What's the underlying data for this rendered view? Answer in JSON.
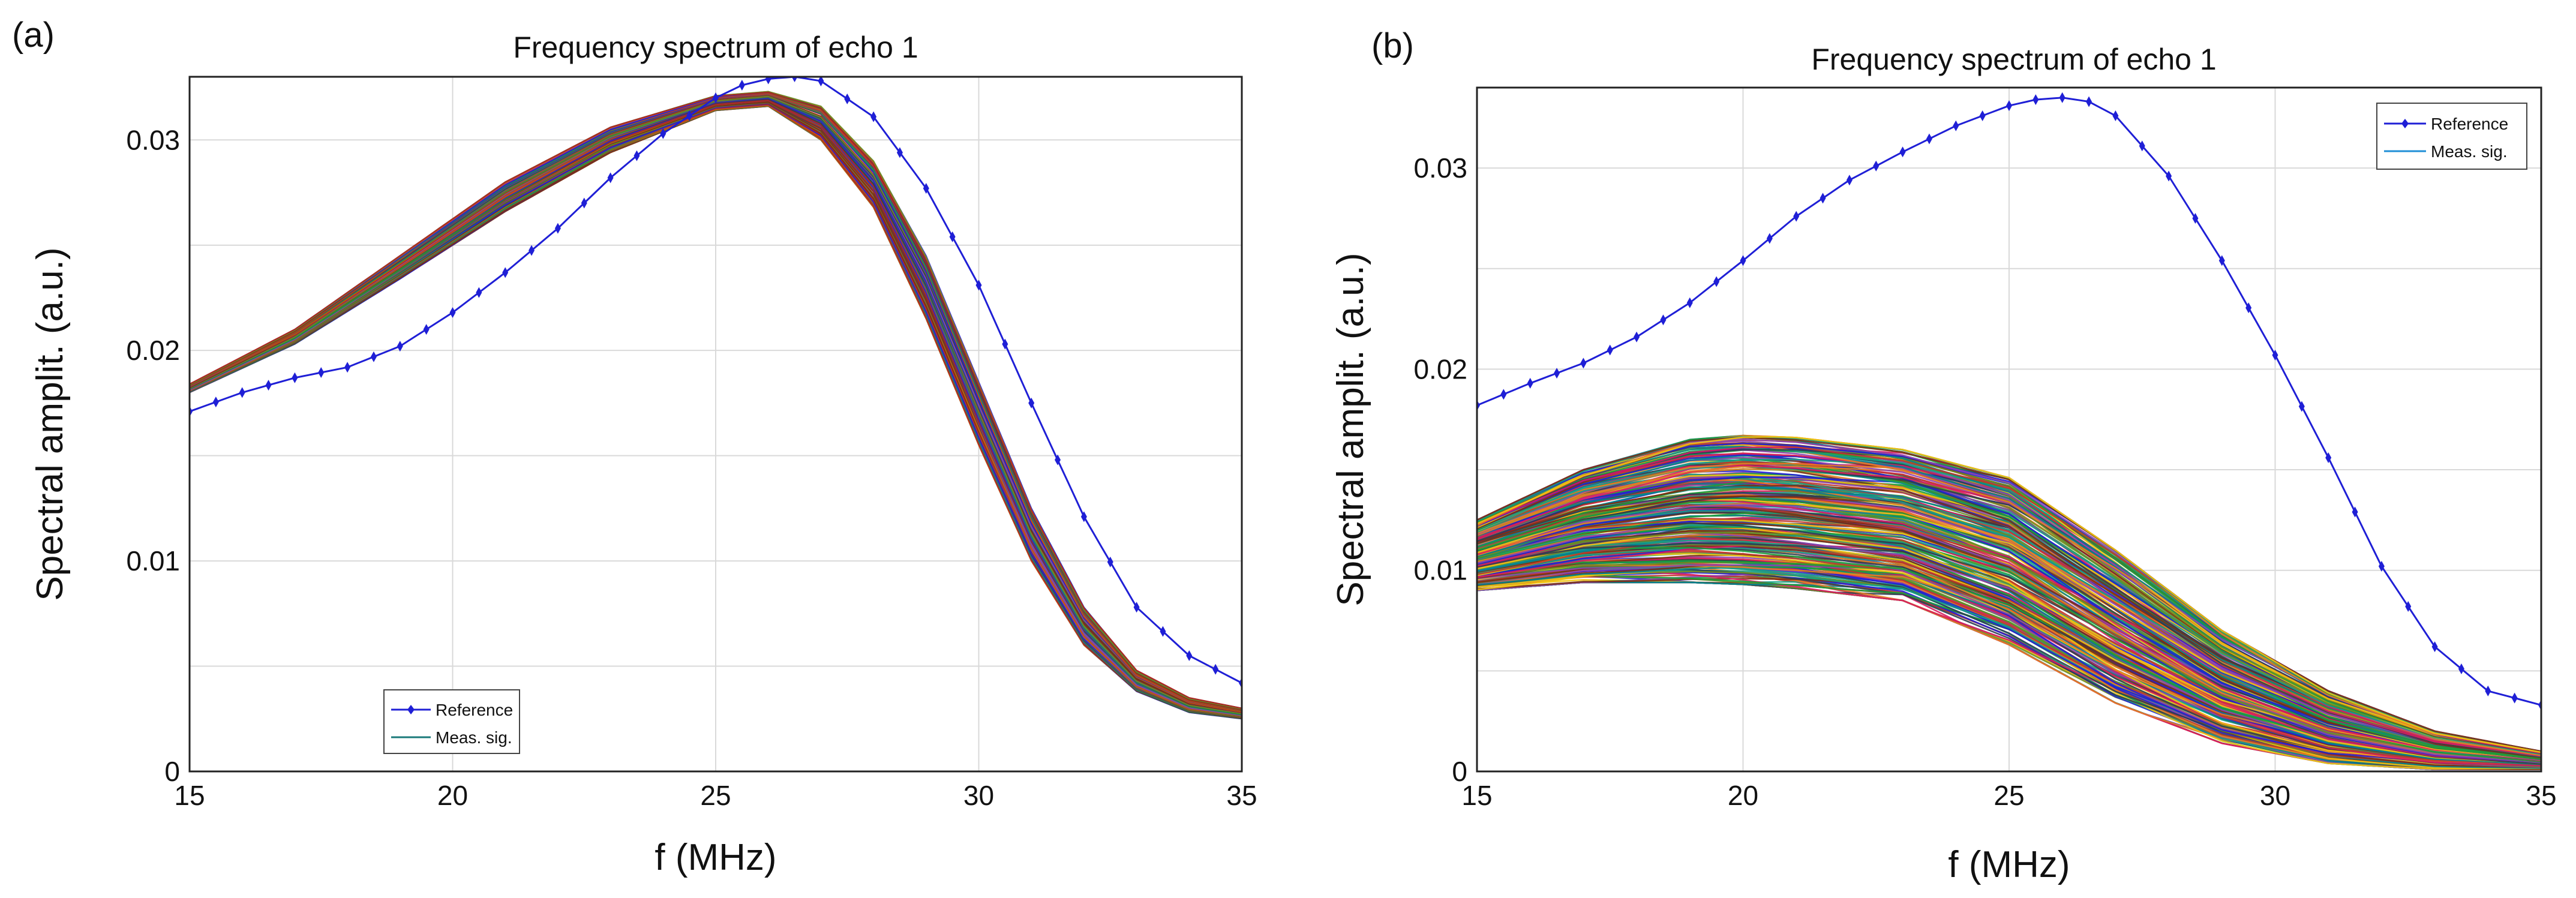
{
  "chart_data": [
    {
      "panel": "(a)",
      "type": "line",
      "title": "Frequency spectrum of echo 1",
      "xlabel": "f (MHz)",
      "ylabel": "Spectral amplit. (a.u.)",
      "xlim": [
        15,
        35
      ],
      "ylim": [
        0,
        0.033
      ],
      "xticks": [
        15,
        20,
        25,
        30,
        35
      ],
      "yticks": [
        0,
        0.01,
        0.02,
        0.03
      ],
      "ytick_labels": [
        "0",
        "0.01",
        "0.02",
        "0.03"
      ],
      "grid": true,
      "legend": {
        "position": "bottom-left",
        "entries": [
          "Reference",
          "Meas. sig."
        ]
      },
      "reference": {
        "name": "Reference",
        "color": "#1f1fd6",
        "marker": "diamond",
        "x": [
          15,
          16,
          17,
          18,
          19,
          20,
          21,
          22,
          23,
          24,
          25,
          25.5,
          26,
          26.5,
          27,
          28,
          29,
          30,
          31,
          32,
          33,
          34,
          35
        ],
        "y": [
          0.0171,
          0.018,
          0.0187,
          0.0192,
          0.0202,
          0.0218,
          0.0237,
          0.0258,
          0.0282,
          0.0303,
          0.032,
          0.0326,
          0.0329,
          0.033,
          0.0328,
          0.0311,
          0.0277,
          0.0231,
          0.0175,
          0.0121,
          0.0078,
          0.0055,
          0.0042
        ]
      },
      "measured": {
        "name": "Meas. sig.",
        "count": 120,
        "palette": [
          "#1b9e3a",
          "#c0392b",
          "#7b2d12",
          "#1f1fd6",
          "#1a7a7a",
          "#8e44ad",
          "#d35400",
          "#2c3e50",
          "#6b8e23",
          "#b22222"
        ],
        "x": [
          15,
          17,
          19,
          21,
          23,
          25,
          26,
          27,
          28,
          29,
          30,
          31,
          32,
          33,
          34,
          35
        ],
        "y_upper": [
          0.0184,
          0.021,
          0.0245,
          0.028,
          0.0306,
          0.0321,
          0.0323,
          0.0316,
          0.029,
          0.0245,
          0.0185,
          0.0125,
          0.0078,
          0.0048,
          0.0035,
          0.003
        ],
        "y_lower": [
          0.018,
          0.0203,
          0.0234,
          0.0266,
          0.0294,
          0.0314,
          0.0316,
          0.03,
          0.0268,
          0.0215,
          0.0155,
          0.01,
          0.006,
          0.0038,
          0.0028,
          0.0025
        ]
      }
    },
    {
      "panel": "(b)",
      "type": "line",
      "title": "Frequency spectrum of echo 1",
      "xlabel": "f (MHz)",
      "ylabel": "Spectral amplit. (a.u.)",
      "xlim": [
        15,
        35
      ],
      "ylim": [
        0,
        0.034
      ],
      "xticks": [
        15,
        20,
        25,
        30,
        35
      ],
      "yticks": [
        0,
        0.01,
        0.02,
        0.03
      ],
      "ytick_labels": [
        "0",
        "0.01",
        "0.02",
        "0.03"
      ],
      "grid": true,
      "legend": {
        "position": "top-right",
        "entries": [
          "Reference",
          "Meas. sig."
        ]
      },
      "reference": {
        "name": "Reference",
        "color": "#1f1fd6",
        "marker": "diamond",
        "x": [
          15,
          16,
          17,
          18,
          19,
          20,
          21,
          22,
          23,
          24,
          25,
          25.5,
          26,
          26.5,
          27,
          28,
          29,
          30,
          31,
          32,
          33,
          34,
          35
        ],
        "y": [
          0.0182,
          0.0193,
          0.0203,
          0.0216,
          0.0233,
          0.0254,
          0.0276,
          0.0294,
          0.0308,
          0.0321,
          0.0331,
          0.0334,
          0.0335,
          0.0333,
          0.0326,
          0.0296,
          0.0254,
          0.0207,
          0.0156,
          0.0102,
          0.0062,
          0.004,
          0.0033
        ]
      },
      "measured": {
        "name": "Meas. sig.",
        "count": 260,
        "palette": [
          "#1b9e3a",
          "#c0392b",
          "#1f1fd6",
          "#e67e22",
          "#8e44ad",
          "#16a085",
          "#7b2d12",
          "#f1c40f",
          "#2c3e50",
          "#d81b60",
          "#6b8e23",
          "#00838f"
        ],
        "x": [
          15,
          17,
          19,
          20,
          21,
          23,
          25,
          27,
          29,
          31,
          33,
          35
        ],
        "y_upper": [
          0.0125,
          0.015,
          0.0165,
          0.0167,
          0.0166,
          0.016,
          0.0146,
          0.011,
          0.007,
          0.004,
          0.002,
          0.001
        ],
        "y_lower": [
          0.009,
          0.0094,
          0.0094,
          0.0093,
          0.0091,
          0.0085,
          0.0063,
          0.0034,
          0.0014,
          0.0004,
          0.0001,
          0.0001
        ]
      }
    }
  ]
}
